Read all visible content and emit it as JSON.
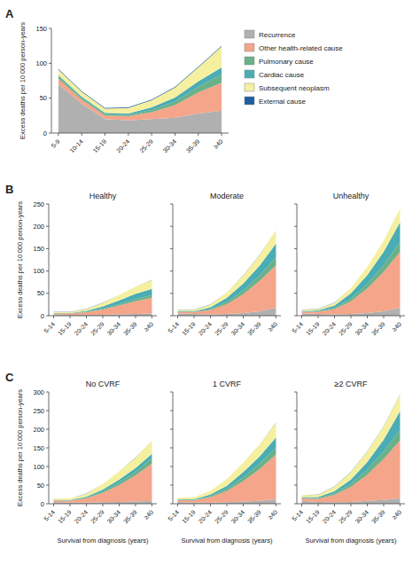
{
  "chart_data": [
    {
      "type": "area",
      "stacked": true,
      "annotations": [
        "A"
      ],
      "ylabel": "Excess deaths per 10 000 person-years",
      "categories": [
        "5-9",
        "10-14",
        "15-19",
        "20-24",
        "25-29",
        "30-34",
        "35-39",
        "≥40"
      ],
      "series": [
        {
          "name": "Recurrence",
          "color": "#b0b0b0",
          "values": [
            70,
            42,
            20,
            18,
            20,
            22,
            28,
            32
          ]
        },
        {
          "name": "Other health-related cause",
          "color": "#f4a58a",
          "values": [
            8,
            6,
            5,
            6,
            10,
            18,
            30,
            40
          ]
        },
        {
          "name": "Pulmonary cause",
          "color": "#6ab187",
          "values": [
            3,
            2,
            2,
            2,
            3,
            5,
            8,
            12
          ]
        },
        {
          "name": "Cardiac cause",
          "color": "#4aacb5",
          "values": [
            2,
            2,
            2,
            2,
            4,
            6,
            8,
            10
          ]
        },
        {
          "name": "Subsequent neoplasm",
          "color": "#f5f0a0",
          "values": [
            8,
            7,
            6,
            8,
            10,
            14,
            20,
            30
          ]
        },
        {
          "name": "External cause",
          "color": "#1c5fa0",
          "values": [
            1,
            1,
            1,
            1,
            1,
            1,
            1,
            1
          ]
        }
      ],
      "ylim": [
        0,
        150
      ],
      "yticks": [
        0,
        50,
        100,
        150
      ],
      "grid": false,
      "legend": "right"
    },
    {
      "type": "area",
      "stacked": true,
      "title": "Healthy",
      "annotations": [
        "B"
      ],
      "ylabel": "Excess deaths per 10 000 person-years",
      "categories": [
        "5-14",
        "15-19",
        "20-24",
        "25-29",
        "30-34",
        "35-39",
        "≥40"
      ],
      "series": [
        {
          "name": "Recurrence",
          "color": "#b0b0b0",
          "values": [
            3,
            2,
            2,
            2,
            3,
            4,
            5
          ]
        },
        {
          "name": "Other health-related cause",
          "color": "#f4a58a",
          "values": [
            2,
            3,
            6,
            12,
            20,
            28,
            35
          ]
        },
        {
          "name": "Pulmonary cause",
          "color": "#6ab187",
          "values": [
            0.5,
            0.5,
            1,
            2,
            3,
            5,
            6
          ]
        },
        {
          "name": "Cardiac cause",
          "color": "#4aacb5",
          "values": [
            0.5,
            0.5,
            2,
            5,
            8,
            12,
            14
          ]
        },
        {
          "name": "Subsequent neoplasm",
          "color": "#f5f0a0",
          "values": [
            2,
            2,
            4,
            8,
            12,
            16,
            20
          ]
        },
        {
          "name": "External cause",
          "color": "#1c5fa0",
          "values": [
            0.2,
            0.2,
            0.2,
            0.2,
            0.2,
            0.2,
            0.2
          ]
        }
      ],
      "ylim": [
        0,
        250
      ],
      "yticks": [
        0,
        50,
        100,
        150,
        200,
        250
      ],
      "grid": false
    },
    {
      "type": "area",
      "stacked": true,
      "title": "Moderate",
      "categories": [
        "5-14",
        "15-19",
        "20-24",
        "25-29",
        "30-34",
        "35-39",
        "≥40"
      ],
      "series": [
        {
          "name": "Recurrence",
          "color": "#b0b0b0",
          "values": [
            5,
            4,
            3,
            4,
            6,
            10,
            18
          ]
        },
        {
          "name": "Other health-related cause",
          "color": "#f4a58a",
          "values": [
            3,
            4,
            10,
            22,
            42,
            68,
            95
          ]
        },
        {
          "name": "Pulmonary cause",
          "color": "#6ab187",
          "values": [
            1,
            1,
            2,
            5,
            8,
            12,
            18
          ]
        },
        {
          "name": "Cardiac cause",
          "color": "#4aacb5",
          "values": [
            1,
            1,
            4,
            9,
            16,
            22,
            30
          ]
        },
        {
          "name": "Subsequent neoplasm",
          "color": "#f5f0a0",
          "values": [
            3,
            3,
            6,
            12,
            18,
            24,
            30
          ]
        },
        {
          "name": "External cause",
          "color": "#1c5fa0",
          "values": [
            0.2,
            0.2,
            0.2,
            0.2,
            0.2,
            0.2,
            0.2
          ]
        }
      ],
      "ylim": [
        0,
        250
      ],
      "yticks": [
        0,
        50,
        100,
        150,
        200,
        250
      ],
      "grid": false,
      "tick_labels": "x"
    },
    {
      "type": "area",
      "stacked": true,
      "title": "Unhealthy",
      "categories": [
        "5-14",
        "15-19",
        "20-24",
        "25-29",
        "30-34",
        "35-39",
        "≥40"
      ],
      "series": [
        {
          "name": "Recurrence",
          "color": "#b0b0b0",
          "values": [
            5,
            4,
            3,
            4,
            6,
            10,
            18
          ]
        },
        {
          "name": "Other health-related cause",
          "color": "#f4a58a",
          "values": [
            3,
            5,
            12,
            28,
            55,
            88,
            125
          ]
        },
        {
          "name": "Pulmonary cause",
          "color": "#6ab187",
          "values": [
            1,
            1,
            3,
            6,
            10,
            15,
            22
          ]
        },
        {
          "name": "Cardiac cause",
          "color": "#4aacb5",
          "values": [
            1,
            2,
            5,
            12,
            20,
            30,
            44
          ]
        },
        {
          "name": "Subsequent neoplasm",
          "color": "#f5f0a0",
          "values": [
            3,
            3,
            6,
            12,
            18,
            24,
            30
          ]
        },
        {
          "name": "External cause",
          "color": "#1c5fa0",
          "values": [
            0.2,
            0.2,
            0.2,
            0.2,
            0.2,
            0.2,
            0.2
          ]
        }
      ],
      "ylim": [
        0,
        250
      ],
      "yticks": [
        0,
        50,
        100,
        150,
        200,
        250
      ],
      "grid": false,
      "tick_labels": "x"
    },
    {
      "type": "area",
      "stacked": true,
      "title": "No CVRF",
      "annotations": [
        "C"
      ],
      "ylabel": "Excess deaths per 10 000 person-years",
      "xlabel": "Survival from diagnosis (years)",
      "categories": [
        "5-14",
        "15-19",
        "20-24",
        "25-29",
        "30-34",
        "35-39",
        "≥40"
      ],
      "series": [
        {
          "name": "Recurrence",
          "color": "#b0b0b0",
          "values": [
            5,
            3,
            3,
            4,
            5,
            6,
            8
          ]
        },
        {
          "name": "Other health-related cause",
          "color": "#f4a58a",
          "values": [
            4,
            5,
            12,
            25,
            45,
            70,
            100
          ]
        },
        {
          "name": "Pulmonary cause",
          "color": "#6ab187",
          "values": [
            1,
            1,
            2,
            4,
            7,
            10,
            14
          ]
        },
        {
          "name": "Cardiac cause",
          "color": "#4aacb5",
          "values": [
            1,
            1,
            2,
            5,
            8,
            10,
            12
          ]
        },
        {
          "name": "Subsequent neoplasm",
          "color": "#f5f0a0",
          "values": [
            3,
            4,
            8,
            15,
            22,
            28,
            35
          ]
        },
        {
          "name": "External cause",
          "color": "#1c5fa0",
          "values": [
            0.2,
            0.2,
            0.2,
            0.2,
            0.2,
            0.2,
            0.2
          ]
        }
      ],
      "ylim": [
        0,
        300
      ],
      "yticks": [
        0,
        50,
        100,
        150,
        200,
        250,
        300
      ],
      "grid": false
    },
    {
      "type": "area",
      "stacked": true,
      "title": "1 CVRF",
      "xlabel": "Survival from diagnosis (years)",
      "categories": [
        "5-14",
        "15-19",
        "20-24",
        "25-29",
        "30-34",
        "35-39",
        "≥40"
      ],
      "series": [
        {
          "name": "Recurrence",
          "color": "#b0b0b0",
          "values": [
            5,
            3,
            3,
            4,
            6,
            8,
            12
          ]
        },
        {
          "name": "Other health-related cause",
          "color": "#f4a58a",
          "values": [
            5,
            6,
            15,
            30,
            55,
            85,
            120
          ]
        },
        {
          "name": "Pulmonary cause",
          "color": "#6ab187",
          "values": [
            1,
            1,
            3,
            6,
            10,
            14,
            18
          ]
        },
        {
          "name": "Cardiac cause",
          "color": "#4aacb5",
          "values": [
            1,
            2,
            4,
            8,
            14,
            20,
            28
          ]
        },
        {
          "name": "Subsequent neoplasm",
          "color": "#f5f0a0",
          "values": [
            4,
            5,
            10,
            18,
            25,
            32,
            40
          ]
        },
        {
          "name": "External cause",
          "color": "#1c5fa0",
          "values": [
            0.2,
            0.2,
            0.2,
            0.2,
            0.2,
            0.2,
            0.2
          ]
        }
      ],
      "ylim": [
        0,
        300
      ],
      "yticks": [
        0,
        50,
        100,
        150,
        200,
        250,
        300
      ],
      "grid": false,
      "tick_labels": "x"
    },
    {
      "type": "area",
      "stacked": true,
      "title": "≥2 CVRF",
      "xlabel": "Survival from diagnosis (years)",
      "categories": [
        "5-14",
        "15-19",
        "20-24",
        "25-29",
        "30-34",
        "35-39",
        "≥40"
      ],
      "series": [
        {
          "name": "Recurrence",
          "color": "#b0b0b0",
          "values": [
            8,
            5,
            4,
            5,
            8,
            10,
            15
          ]
        },
        {
          "name": "Other health-related cause",
          "color": "#f4a58a",
          "values": [
            6,
            8,
            20,
            40,
            70,
            110,
            155
          ]
        },
        {
          "name": "Pulmonary cause",
          "color": "#6ab187",
          "values": [
            2,
            2,
            4,
            8,
            14,
            20,
            28
          ]
        },
        {
          "name": "Cardiac cause",
          "color": "#4aacb5",
          "values": [
            2,
            3,
            6,
            12,
            20,
            32,
            50
          ]
        },
        {
          "name": "Subsequent neoplasm",
          "color": "#f5f0a0",
          "values": [
            5,
            6,
            12,
            20,
            28,
            35,
            45
          ]
        },
        {
          "name": "External cause",
          "color": "#1c5fa0",
          "values": [
            0.5,
            0.5,
            0.5,
            0.5,
            0.5,
            0.5,
            0.5
          ]
        }
      ],
      "ylim": [
        0,
        300
      ],
      "yticks": [
        0,
        50,
        100,
        150,
        200,
        250,
        300
      ],
      "grid": false,
      "tick_labels": "x"
    }
  ]
}
